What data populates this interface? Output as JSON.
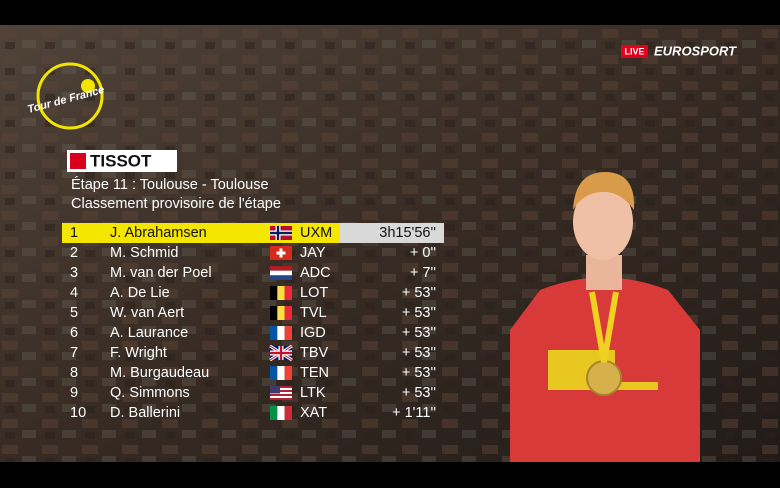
{
  "broadcast": {
    "live": "LIVE",
    "channel": "EUROSPORT",
    "logo": "Tour de France"
  },
  "standings": {
    "sponsor": "TISSOT",
    "title": "Étape 11 : Toulouse - Toulouse",
    "subtitle": "Classement provisoire de l'étape",
    "rows": [
      [
        1,
        "J. Abrahamsen",
        "UXM",
        "3h15'56''"
      ],
      [
        2,
        "M. Schmid",
        "JAY",
        "+ 0''"
      ],
      [
        3,
        "M. van der Poel",
        "ADC",
        "+ 7''"
      ],
      [
        4,
        "A. De Lie",
        "LOT",
        "+ 53''"
      ],
      [
        5,
        "W. van Aert",
        "TVL",
        "+ 53''"
      ],
      [
        6,
        "A. Laurance",
        "IGD",
        "+ 53''"
      ],
      [
        7,
        "F. Wright",
        "TBV",
        "+ 53''"
      ],
      [
        8,
        "M. Burgaudeau",
        "TEN",
        "+ 53''"
      ],
      [
        9,
        "Q. Simmons",
        "LTK",
        "+ 53''"
      ],
      [
        10,
        "D. Ballerini",
        "XAT",
        "+ 1'11''"
      ]
    ]
  }
}
